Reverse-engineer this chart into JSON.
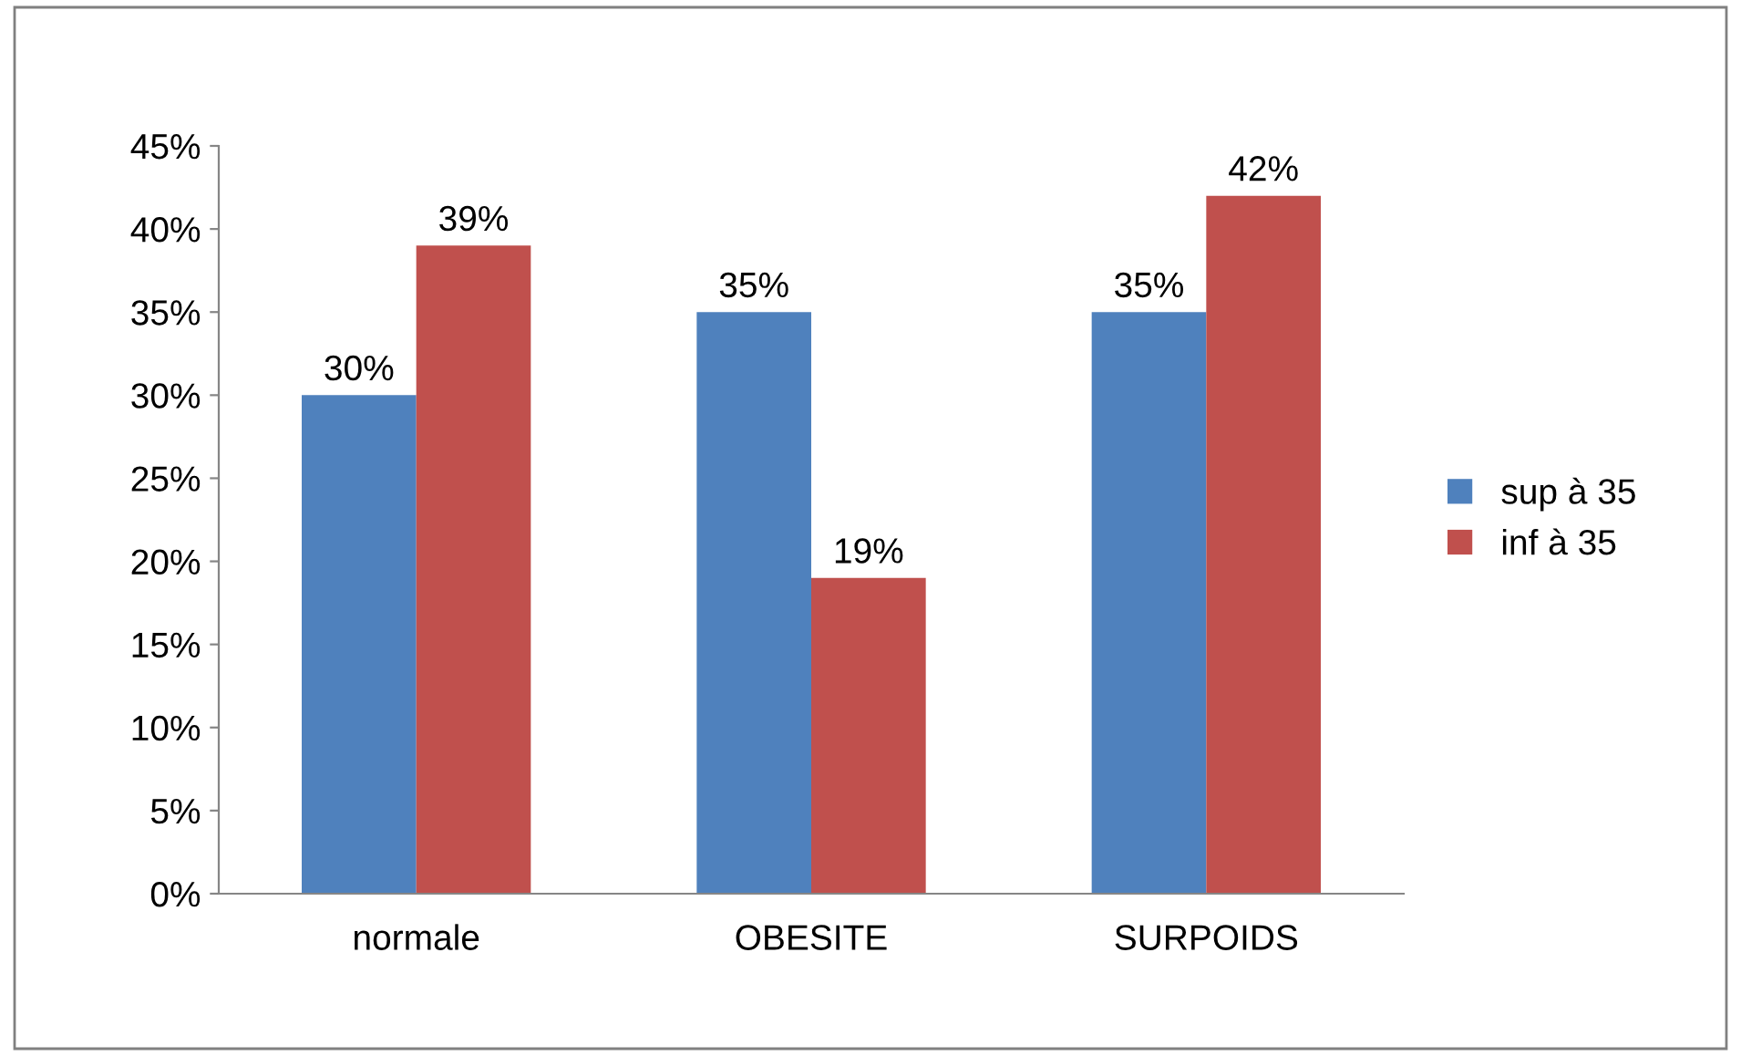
{
  "chart_data": {
    "type": "bar",
    "categories": [
      "normale",
      "OBESITE",
      "SURPOIDS"
    ],
    "series": [
      {
        "name": "sup à 35",
        "color": "#4f81bd",
        "values": [
          30,
          35,
          35
        ],
        "value_labels": [
          "30%",
          "35%",
          "35%"
        ]
      },
      {
        "name": "inf à 35",
        "color": "#c0504d",
        "values": [
          39,
          19,
          42
        ],
        "value_labels": [
          "39%",
          "19%",
          "42%"
        ]
      }
    ],
    "ylim": [
      0,
      45
    ],
    "yticks": [
      {
        "value": 0,
        "label": "0%"
      },
      {
        "value": 5,
        "label": "5%"
      },
      {
        "value": 10,
        "label": "10%"
      },
      {
        "value": 15,
        "label": "15%"
      },
      {
        "value": 20,
        "label": "20%"
      },
      {
        "value": 25,
        "label": "25%"
      },
      {
        "value": 30,
        "label": "30%"
      },
      {
        "value": 35,
        "label": "35%"
      },
      {
        "value": 40,
        "label": "40%"
      },
      {
        "value": 45,
        "label": "45%"
      }
    ],
    "grid": false,
    "legend": "right"
  }
}
